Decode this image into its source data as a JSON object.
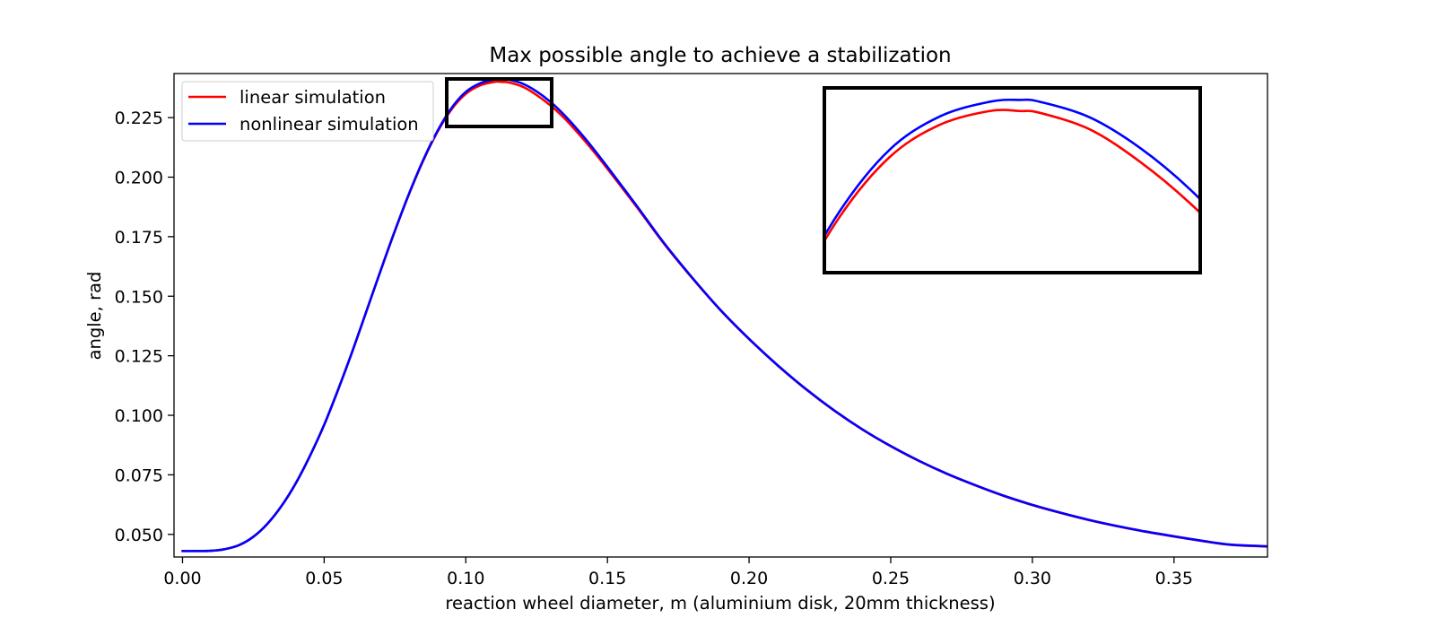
{
  "chart_data": {
    "type": "line",
    "title": "Max possible angle to achieve a stabilization",
    "xlabel": "reaction wheel diameter, m (aluminium disk, 20mm thickness)",
    "ylabel": "angle, rad",
    "xlim": [
      -0.003,
      0.383
    ],
    "ylim": [
      0.0405,
      0.2435
    ],
    "grid": false,
    "legend_position": "top-left",
    "x_ticks": [
      "0.00",
      "0.05",
      "0.10",
      "0.15",
      "0.20",
      "0.25",
      "0.30",
      "0.35"
    ],
    "y_ticks": [
      "0.050",
      "0.075",
      "0.100",
      "0.125",
      "0.150",
      "0.175",
      "0.200",
      "0.225"
    ],
    "series": [
      {
        "name": "linear simulation",
        "color": "#ff0000",
        "x": [
          0.0,
          0.005,
          0.01,
          0.015,
          0.02,
          0.025,
          0.03,
          0.035,
          0.04,
          0.045,
          0.05,
          0.055,
          0.06,
          0.065,
          0.07,
          0.075,
          0.08,
          0.085,
          0.09,
          0.095,
          0.1,
          0.105,
          0.11,
          0.113,
          0.115,
          0.12,
          0.125,
          0.13,
          0.135,
          0.14,
          0.145,
          0.15,
          0.16,
          0.17,
          0.18,
          0.19,
          0.2,
          0.21,
          0.22,
          0.23,
          0.24,
          0.25,
          0.26,
          0.27,
          0.28,
          0.29,
          0.3,
          0.31,
          0.32,
          0.33,
          0.34,
          0.35,
          0.36,
          0.37,
          0.383
        ],
        "y": [
          0.043,
          0.043,
          0.0431,
          0.0438,
          0.0455,
          0.049,
          0.0545,
          0.062,
          0.0715,
          0.083,
          0.096,
          0.111,
          0.127,
          0.144,
          0.161,
          0.1775,
          0.193,
          0.207,
          0.219,
          0.2285,
          0.235,
          0.2385,
          0.24,
          0.24,
          0.2398,
          0.238,
          0.2345,
          0.23,
          0.2245,
          0.218,
          0.211,
          0.2035,
          0.188,
          0.172,
          0.1575,
          0.144,
          0.132,
          0.121,
          0.111,
          0.102,
          0.094,
          0.087,
          0.0808,
          0.0753,
          0.0705,
          0.0661,
          0.0623,
          0.059,
          0.056,
          0.0534,
          0.0511,
          0.0491,
          0.0472,
          0.0456,
          0.0449
        ]
      },
      {
        "name": "nonlinear simulation",
        "color": "#0000ff",
        "x": [
          0.0,
          0.005,
          0.01,
          0.015,
          0.02,
          0.025,
          0.03,
          0.035,
          0.04,
          0.045,
          0.05,
          0.055,
          0.06,
          0.065,
          0.07,
          0.075,
          0.08,
          0.085,
          0.09,
          0.095,
          0.1,
          0.105,
          0.11,
          0.113,
          0.115,
          0.12,
          0.125,
          0.13,
          0.135,
          0.14,
          0.145,
          0.15,
          0.16,
          0.17,
          0.18,
          0.19,
          0.2,
          0.21,
          0.22,
          0.23,
          0.24,
          0.25,
          0.26,
          0.27,
          0.28,
          0.29,
          0.3,
          0.31,
          0.32,
          0.33,
          0.34,
          0.35,
          0.36,
          0.37,
          0.383
        ],
        "y": [
          0.043,
          0.043,
          0.0431,
          0.0438,
          0.0455,
          0.049,
          0.0545,
          0.062,
          0.0715,
          0.083,
          0.096,
          0.111,
          0.127,
          0.144,
          0.161,
          0.1776,
          0.1932,
          0.2073,
          0.2194,
          0.2291,
          0.2358,
          0.2394,
          0.241,
          0.2412,
          0.241,
          0.2393,
          0.236,
          0.2315,
          0.2258,
          0.2192,
          0.212,
          0.2043,
          0.1885,
          0.1723,
          0.1577,
          0.1441,
          0.1321,
          0.1211,
          0.1111,
          0.1021,
          0.0941,
          0.0871,
          0.0809,
          0.0754,
          0.0706,
          0.0662,
          0.0624,
          0.0591,
          0.0561,
          0.0535,
          0.0512,
          0.0492,
          0.0473,
          0.0457,
          0.045
        ]
      }
    ],
    "zoom_region": {
      "xlim": [
        0.0935,
        0.131
      ],
      "ylim": [
        0.2225,
        0.2425
      ]
    }
  }
}
